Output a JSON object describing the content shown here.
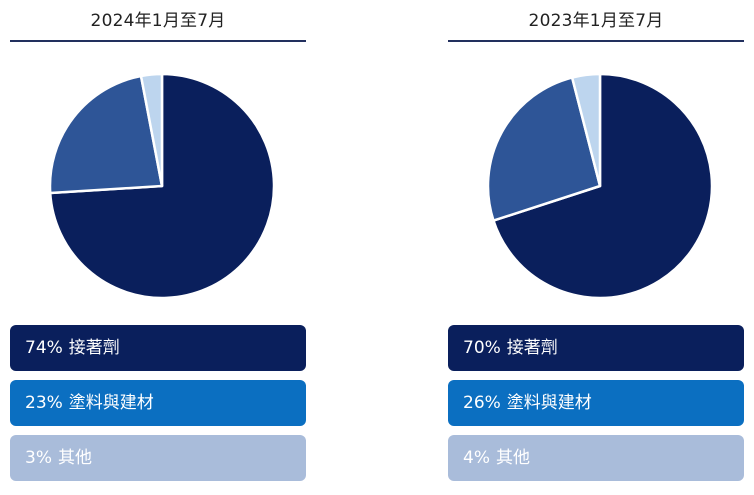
{
  "colors": {
    "adhesives": "#0a1f5c",
    "coatings_slice": "#2e5597",
    "other_slice": "#bdd5ee",
    "coatings_box": "#0b6fc1",
    "other_box": "#a9bcda"
  },
  "chart_data": [
    {
      "type": "pie",
      "title": "2024年1月至7月",
      "categories": [
        "接著劑",
        "塗料與建材",
        "其他"
      ],
      "values": [
        74,
        23,
        3
      ],
      "value_labels": [
        "74%",
        "23%",
        "3%"
      ]
    },
    {
      "type": "pie",
      "title": "2023年1月至7月",
      "categories": [
        "接著劑",
        "塗料與建材",
        "其他"
      ],
      "values": [
        70,
        26,
        4
      ],
      "value_labels": [
        "70%",
        "26%",
        "4%"
      ]
    }
  ]
}
